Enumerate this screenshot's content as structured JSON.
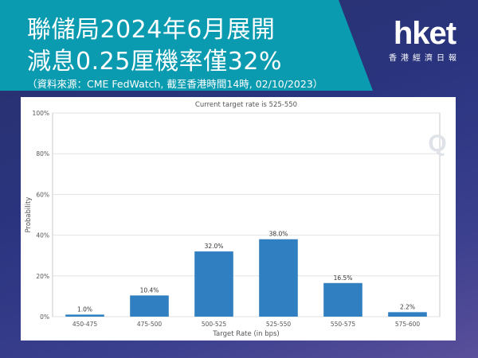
{
  "header": {
    "title_line1": "聯儲局2024年6月展開",
    "title_line2": "減息0.25厘機率僅32%",
    "source": "（資料來源：CME FedWatch, 截至香港時間14時, 02/10/2023）"
  },
  "logo": {
    "word": "hket",
    "sub": "香港經濟日報"
  },
  "chart_data": {
    "type": "bar",
    "title": "Current target rate is 525-550",
    "xlabel": "Target Rate (in bps)",
    "ylabel": "Probability",
    "categories": [
      "450-475",
      "475-500",
      "500-525",
      "525-550",
      "550-575",
      "575-600"
    ],
    "values": [
      1.0,
      10.4,
      32.0,
      38.0,
      16.5,
      2.2
    ],
    "data_labels": [
      "1.0%",
      "10.4%",
      "32.0%",
      "38.0%",
      "16.5%",
      "2.2%"
    ],
    "ylim": [
      0,
      100
    ],
    "yticks": [
      0,
      20,
      40,
      60,
      80,
      100
    ],
    "ytick_labels": [
      "0%",
      "20%",
      "40%",
      "60%",
      "80%",
      "100%"
    ],
    "grid": true,
    "bar_color": "#2f7fc1",
    "watermark": "Q"
  }
}
